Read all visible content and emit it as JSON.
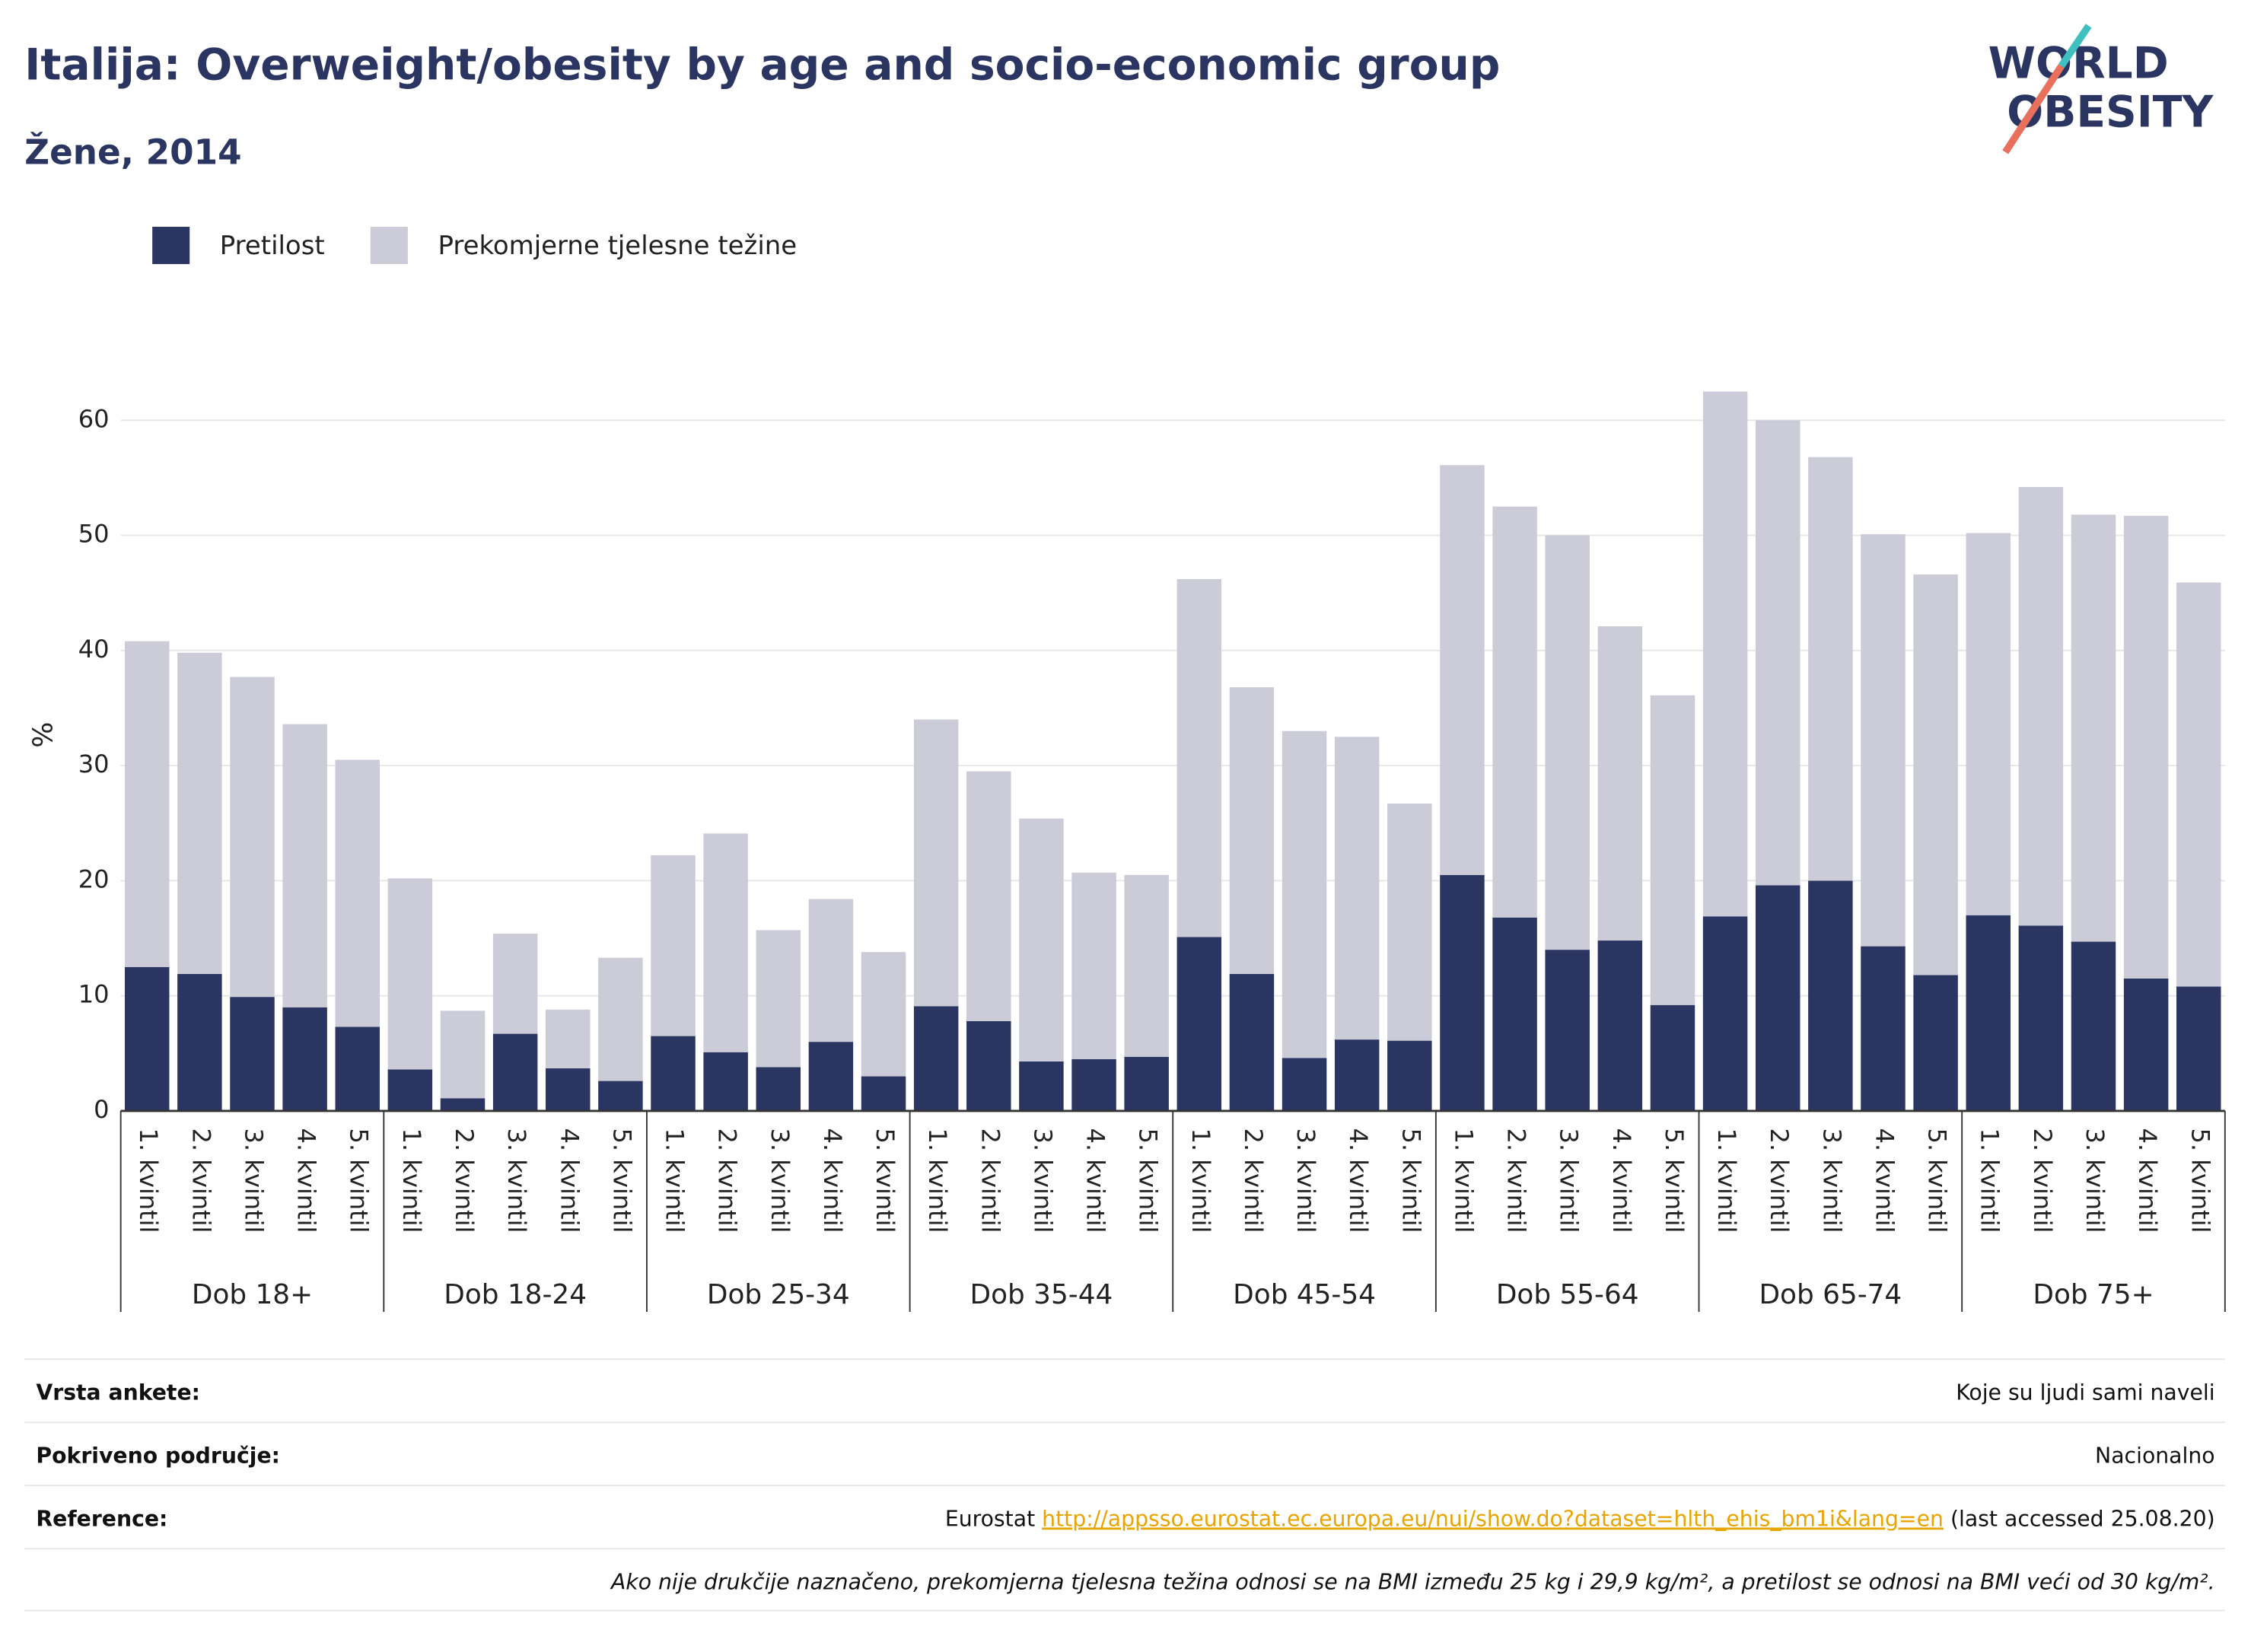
{
  "chart_data": {
    "type": "stacked_bar",
    "title": "Italija: Overweight/obesity by age and socio-economic group",
    "subtitle": "Žene, 2014",
    "ylabel": "%",
    "logo": [
      "WORLD",
      "OBESITY"
    ],
    "categories": [
      "1. kvintil",
      "2. kvintil",
      "3. kvintil",
      "4. kvintil",
      "5. kvintil",
      "1. kvintil",
      "2. kvintil",
      "3. kvintil",
      "4. kvintil",
      "5. kvintil",
      "1. kvintil",
      "2. kvintil",
      "3. kvintil",
      "4. kvintil",
      "5. kvintil",
      "1. kvintil",
      "2. kvintil",
      "3. kvintil",
      "4. kvintil",
      "5. kvintil",
      "1. kvintil",
      "2. kvintil",
      "3. kvintil",
      "4. kvintil",
      "5. kvintil",
      "1. kvintil",
      "2. kvintil",
      "3. kvintil",
      "4. kvintil",
      "5. kvintil",
      "1. kvintil",
      "2. kvintil",
      "3. kvintil",
      "4. kvintil",
      "5. kvintil",
      "1. kvintil",
      "2. kvintil",
      "3. kvintil",
      "4. kvintil",
      "5. kvintil"
    ],
    "groups": [
      "Dob 18+",
      "Dob 18-24",
      "Dob 25-34",
      "Dob 35-44",
      "Dob 45-54",
      "Dob 55-64",
      "Dob 65-74",
      "Dob 75+"
    ],
    "series": [
      {
        "name": "Pretilost",
        "color": "#2b3562",
        "values": [
          12.5,
          11.9,
          9.9,
          9.0,
          7.3,
          3.6,
          1.1,
          6.7,
          3.7,
          2.6,
          6.5,
          5.1,
          3.8,
          6.0,
          3.0,
          9.1,
          7.8,
          4.3,
          4.5,
          4.7,
          15.1,
          11.9,
          4.6,
          6.2,
          6.1,
          20.5,
          16.8,
          14.0,
          14.8,
          9.2,
          16.9,
          19.6,
          20.0,
          14.3,
          11.8,
          17.0,
          16.1,
          14.7,
          11.5,
          10.8
        ]
      },
      {
        "name": "Prekomjerne tjelesne težine",
        "color": "#cbccd8",
        "values": [
          28.3,
          27.9,
          27.8,
          24.6,
          23.2,
          16.6,
          7.6,
          8.7,
          5.1,
          10.7,
          15.7,
          19.0,
          11.9,
          12.4,
          10.8,
          24.9,
          21.7,
          21.1,
          16.2,
          15.8,
          31.1,
          24.9,
          28.4,
          26.3,
          20.6,
          35.6,
          35.7,
          36.0,
          27.3,
          26.9,
          45.6,
          40.4,
          36.8,
          35.8,
          34.8,
          33.2,
          38.1,
          37.1,
          40.2,
          35.1
        ]
      }
    ],
    "ylim": [
      0,
      65
    ],
    "yticks": [
      0,
      10,
      20,
      30,
      40,
      50,
      60
    ],
    "grid": true,
    "legend": "top-left"
  },
  "footer": {
    "rows": [
      {
        "label": "Vrsta ankete:",
        "value": [
          "Koje su ljudi sami naveli"
        ]
      },
      {
        "label": "Pokriveno područje:",
        "value": [
          "Nacionalno"
        ]
      },
      {
        "label": "Reference:",
        "value": [
          "Eurostat ",
          "http://appsso.eurostat.ec.europa.eu/nui/show.do?dataset=hlth_ehis_bm1i&lang=en",
          " (last accessed 25.08.20)"
        ]
      }
    ],
    "note": "Ako nije drukčije naznačeno, prekomjerna tjelesna težina odnosi se na BMI između 25 kg i 29,9 kg/m², a pretilost se odnosi na BMI veći od 30 kg/m²."
  }
}
